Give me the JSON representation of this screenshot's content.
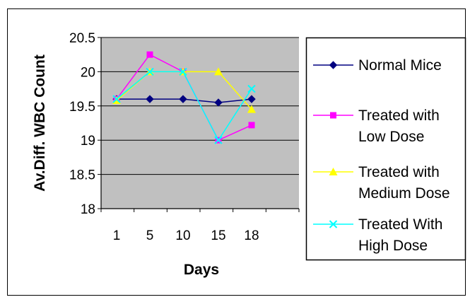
{
  "chart_data": {
    "type": "line",
    "title": "",
    "xlabel": "Days",
    "ylabel": "Av.Diff. WBC Count",
    "categories": [
      "1",
      "5",
      "10",
      "15",
      "18"
    ],
    "ylim": [
      18,
      20.5
    ],
    "yticks": [
      "18",
      "18.5",
      "19",
      "19.5",
      "20",
      "20.5"
    ],
    "grid": true,
    "legend_position": "right",
    "plot_background": "#c0c0c0",
    "series": [
      {
        "name": "Normal Mice",
        "legend_lines": [
          "Normal Mice"
        ],
        "values": [
          19.6,
          19.6,
          19.6,
          19.55,
          19.6
        ],
        "color": "#000080",
        "marker": "diamond"
      },
      {
        "name": "Treated with Low Dose",
        "legend_lines": [
          "Treated with",
          "Low Dose"
        ],
        "values": [
          19.6,
          20.25,
          20.0,
          19.0,
          19.22
        ],
        "color": "#ff00ff",
        "marker": "square"
      },
      {
        "name": "Treated with Medium Dose",
        "legend_lines": [
          "Treated with",
          "Medium Dose"
        ],
        "values": [
          19.58,
          20.0,
          20.0,
          20.0,
          19.45
        ],
        "color": "#ffff00",
        "marker": "triangle"
      },
      {
        "name": "Treated With High Dose",
        "legend_lines": [
          "Treated With",
          "High Dose"
        ],
        "values": [
          19.6,
          20.0,
          20.0,
          19.0,
          19.75
        ],
        "color": "#00ffff",
        "marker": "x"
      }
    ]
  }
}
